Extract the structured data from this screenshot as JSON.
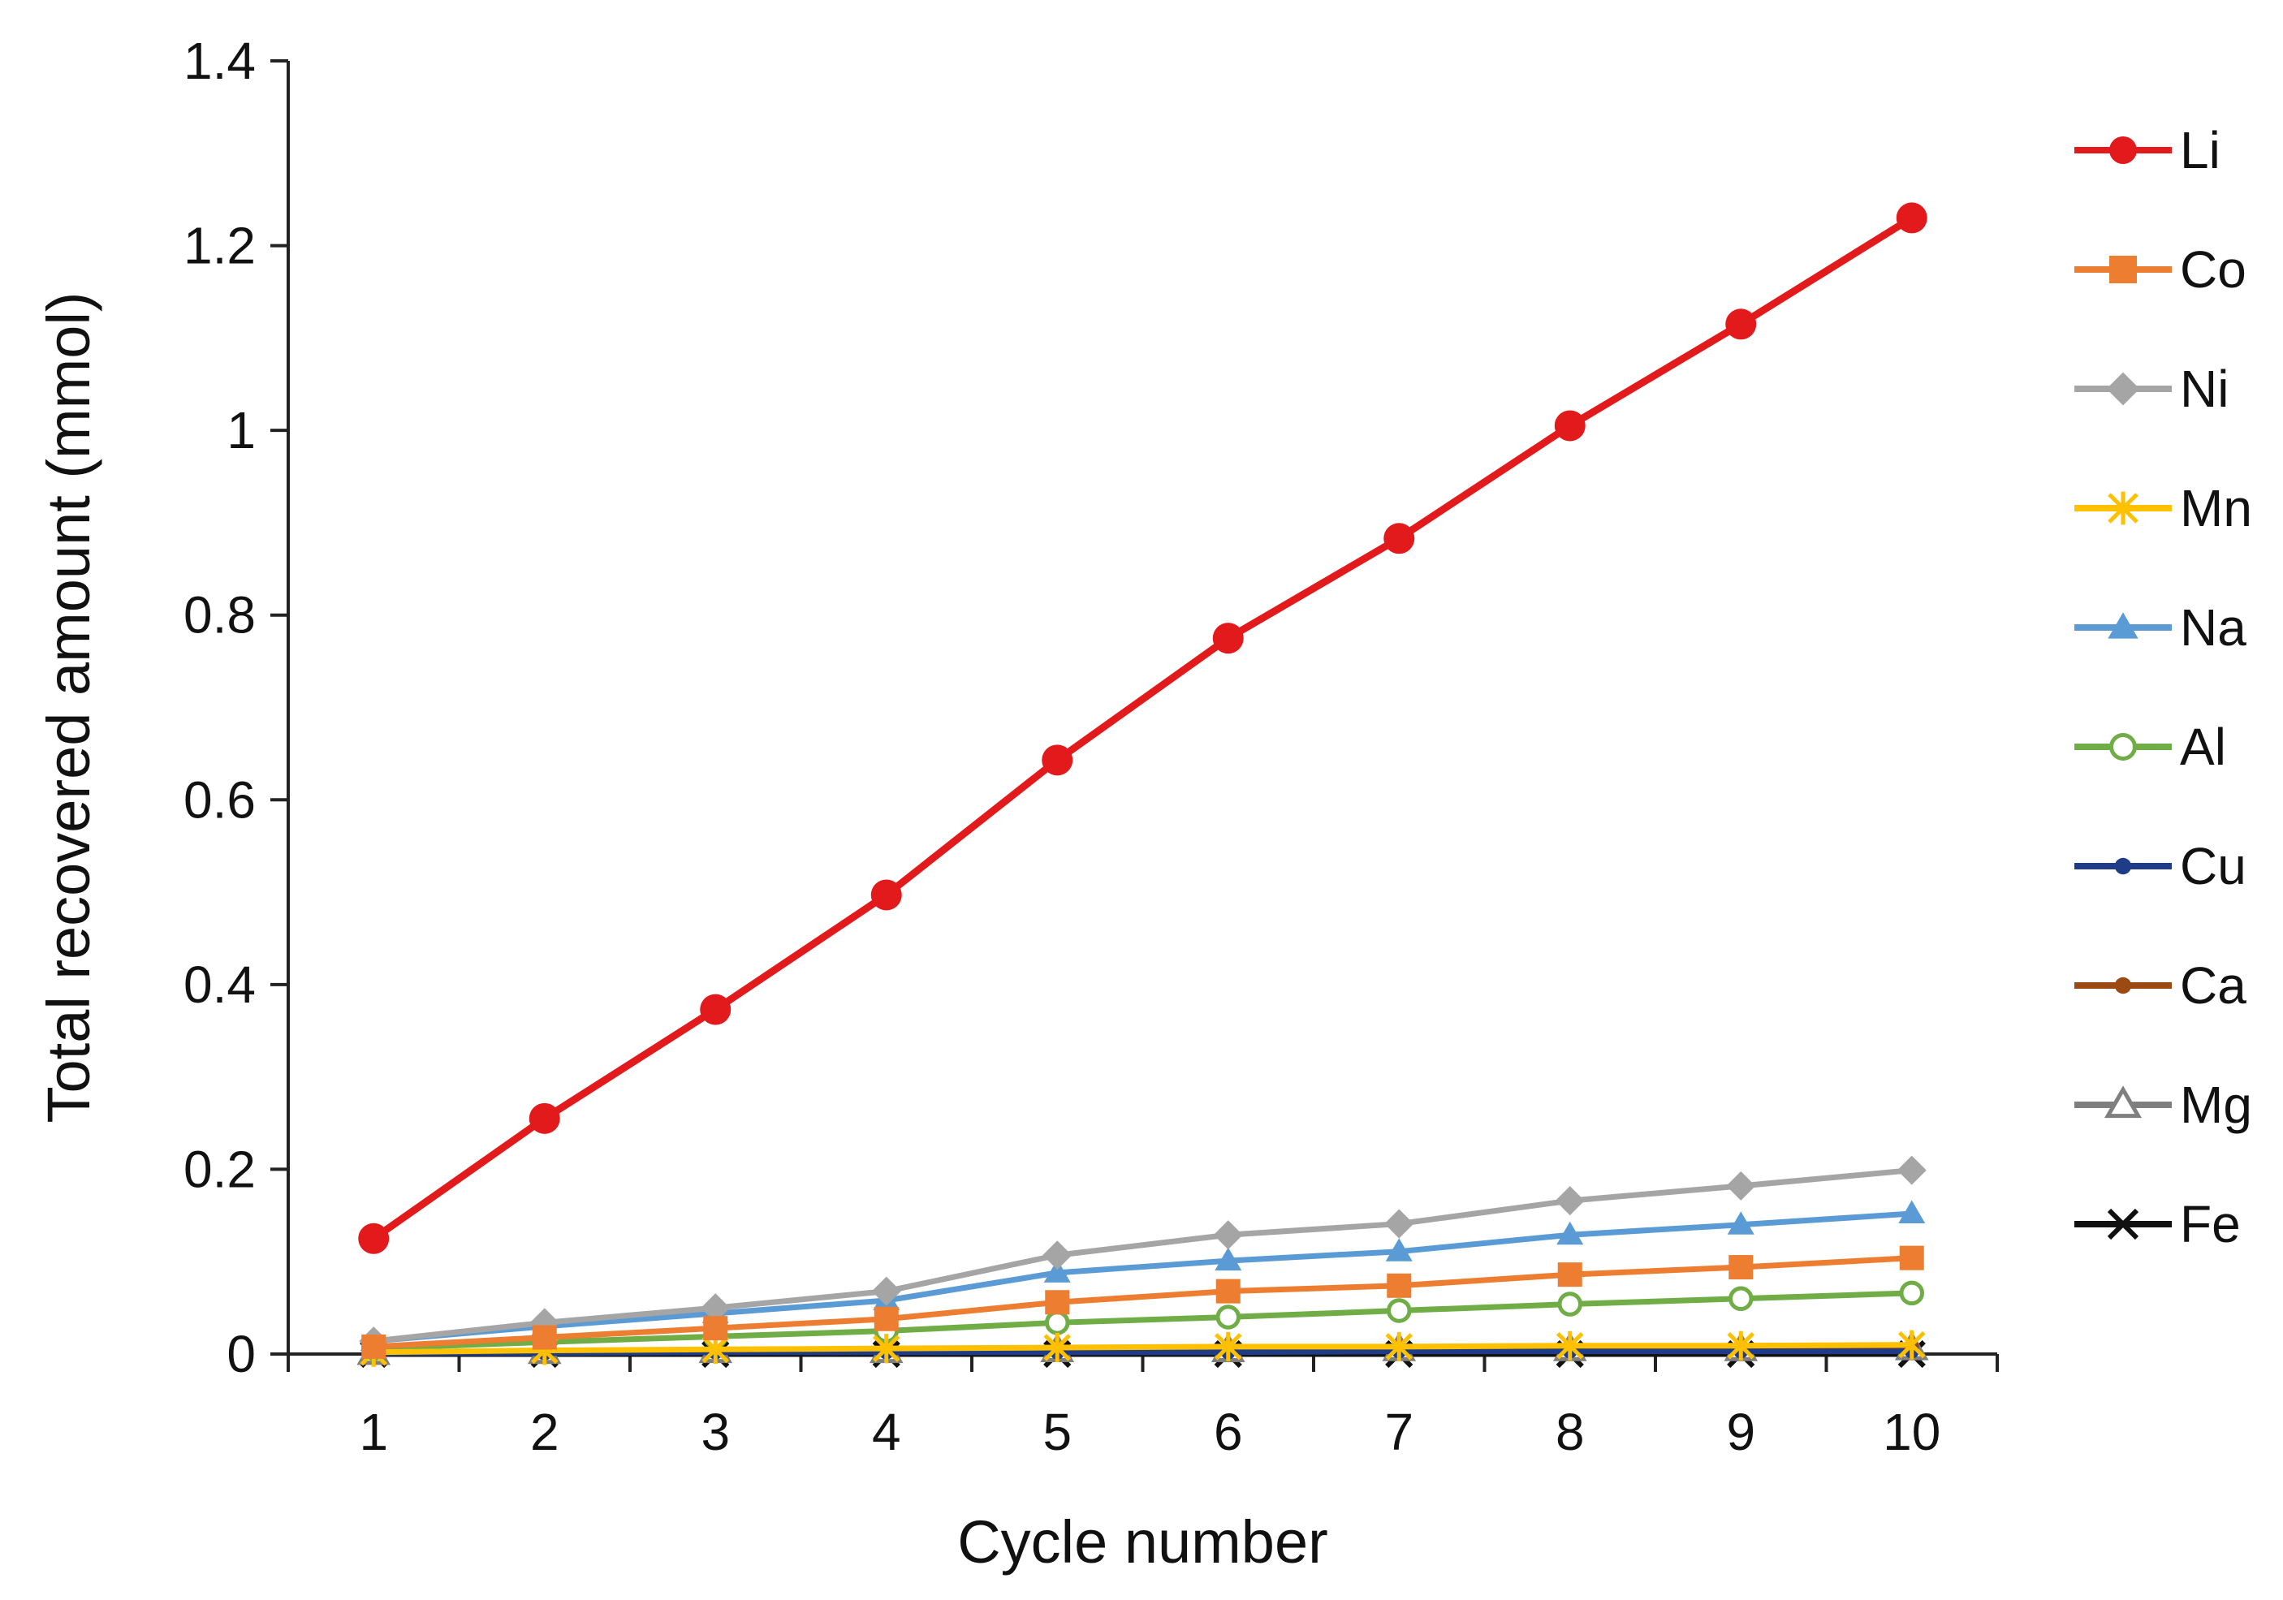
{
  "chart_data": {
    "type": "line",
    "title": "",
    "xlabel": "Cycle number",
    "ylabel": "Total recovered amount (mmol)",
    "x": [
      1,
      2,
      3,
      4,
      5,
      6,
      7,
      8,
      9,
      10
    ],
    "xlim": [
      0.5,
      10.5
    ],
    "ylim": [
      0,
      1.4
    ],
    "yticks": [
      0,
      0.2,
      0.4,
      0.6,
      0.8,
      1,
      1.2,
      1.4
    ],
    "ytick_labels": [
      "0",
      "0.2",
      "0.4",
      "0.6",
      "0.8",
      "1",
      "1.2",
      "1.4"
    ],
    "xtick_labels": [
      "1",
      "2",
      "3",
      "4",
      "5",
      "6",
      "7",
      "8",
      "9",
      "10"
    ],
    "grid": false,
    "legend_position": "right",
    "series": [
      {
        "name": "Li",
        "color": "#e31a1c",
        "marker": "circle-filled",
        "values": [
          0.125,
          0.255,
          0.373,
          0.497,
          0.643,
          0.775,
          0.883,
          1.005,
          1.115,
          1.23
        ]
      },
      {
        "name": "Co",
        "color": "#ed7d31",
        "marker": "square",
        "values": [
          0.008,
          0.018,
          0.028,
          0.038,
          0.056,
          0.068,
          0.074,
          0.086,
          0.094,
          0.104
        ]
      },
      {
        "name": "Ni",
        "color": "#a5a5a5",
        "marker": "diamond",
        "values": [
          0.014,
          0.034,
          0.05,
          0.068,
          0.107,
          0.129,
          0.141,
          0.166,
          0.182,
          0.199
        ]
      },
      {
        "name": "Mn",
        "color": "#ffc000",
        "marker": "star",
        "values": [
          0.002,
          0.004,
          0.005,
          0.006,
          0.007,
          0.008,
          0.008,
          0.009,
          0.009,
          0.01
        ]
      },
      {
        "name": "Na",
        "color": "#5b9bd5",
        "marker": "triangle-filled",
        "values": [
          0.014,
          0.03,
          0.044,
          0.058,
          0.088,
          0.101,
          0.111,
          0.129,
          0.14,
          0.152
        ]
      },
      {
        "name": "Al",
        "color": "#70ad47",
        "marker": "circle-open",
        "values": [
          0.006,
          0.013,
          0.019,
          0.025,
          0.034,
          0.04,
          0.047,
          0.054,
          0.06,
          0.066
        ]
      },
      {
        "name": "Cu",
        "color": "#1f3c88",
        "marker": "dot",
        "values": [
          0.001,
          0.001,
          0.002,
          0.002,
          0.002,
          0.002,
          0.003,
          0.003,
          0.003,
          0.003
        ]
      },
      {
        "name": "Ca",
        "color": "#9c4a14",
        "marker": "dot",
        "values": [
          0.002,
          0.003,
          0.004,
          0.005,
          0.006,
          0.006,
          0.007,
          0.007,
          0.008,
          0.008
        ]
      },
      {
        "name": "Mg",
        "color": "#7f7f7f",
        "marker": "triangle-open",
        "values": [
          0.001,
          0.002,
          0.003,
          0.003,
          0.004,
          0.004,
          0.005,
          0.005,
          0.005,
          0.006
        ]
      },
      {
        "name": "Fe",
        "color": "#111111",
        "marker": "x",
        "values": [
          0,
          0,
          0,
          0,
          0,
          0,
          0,
          0,
          0,
          0
        ]
      }
    ]
  }
}
